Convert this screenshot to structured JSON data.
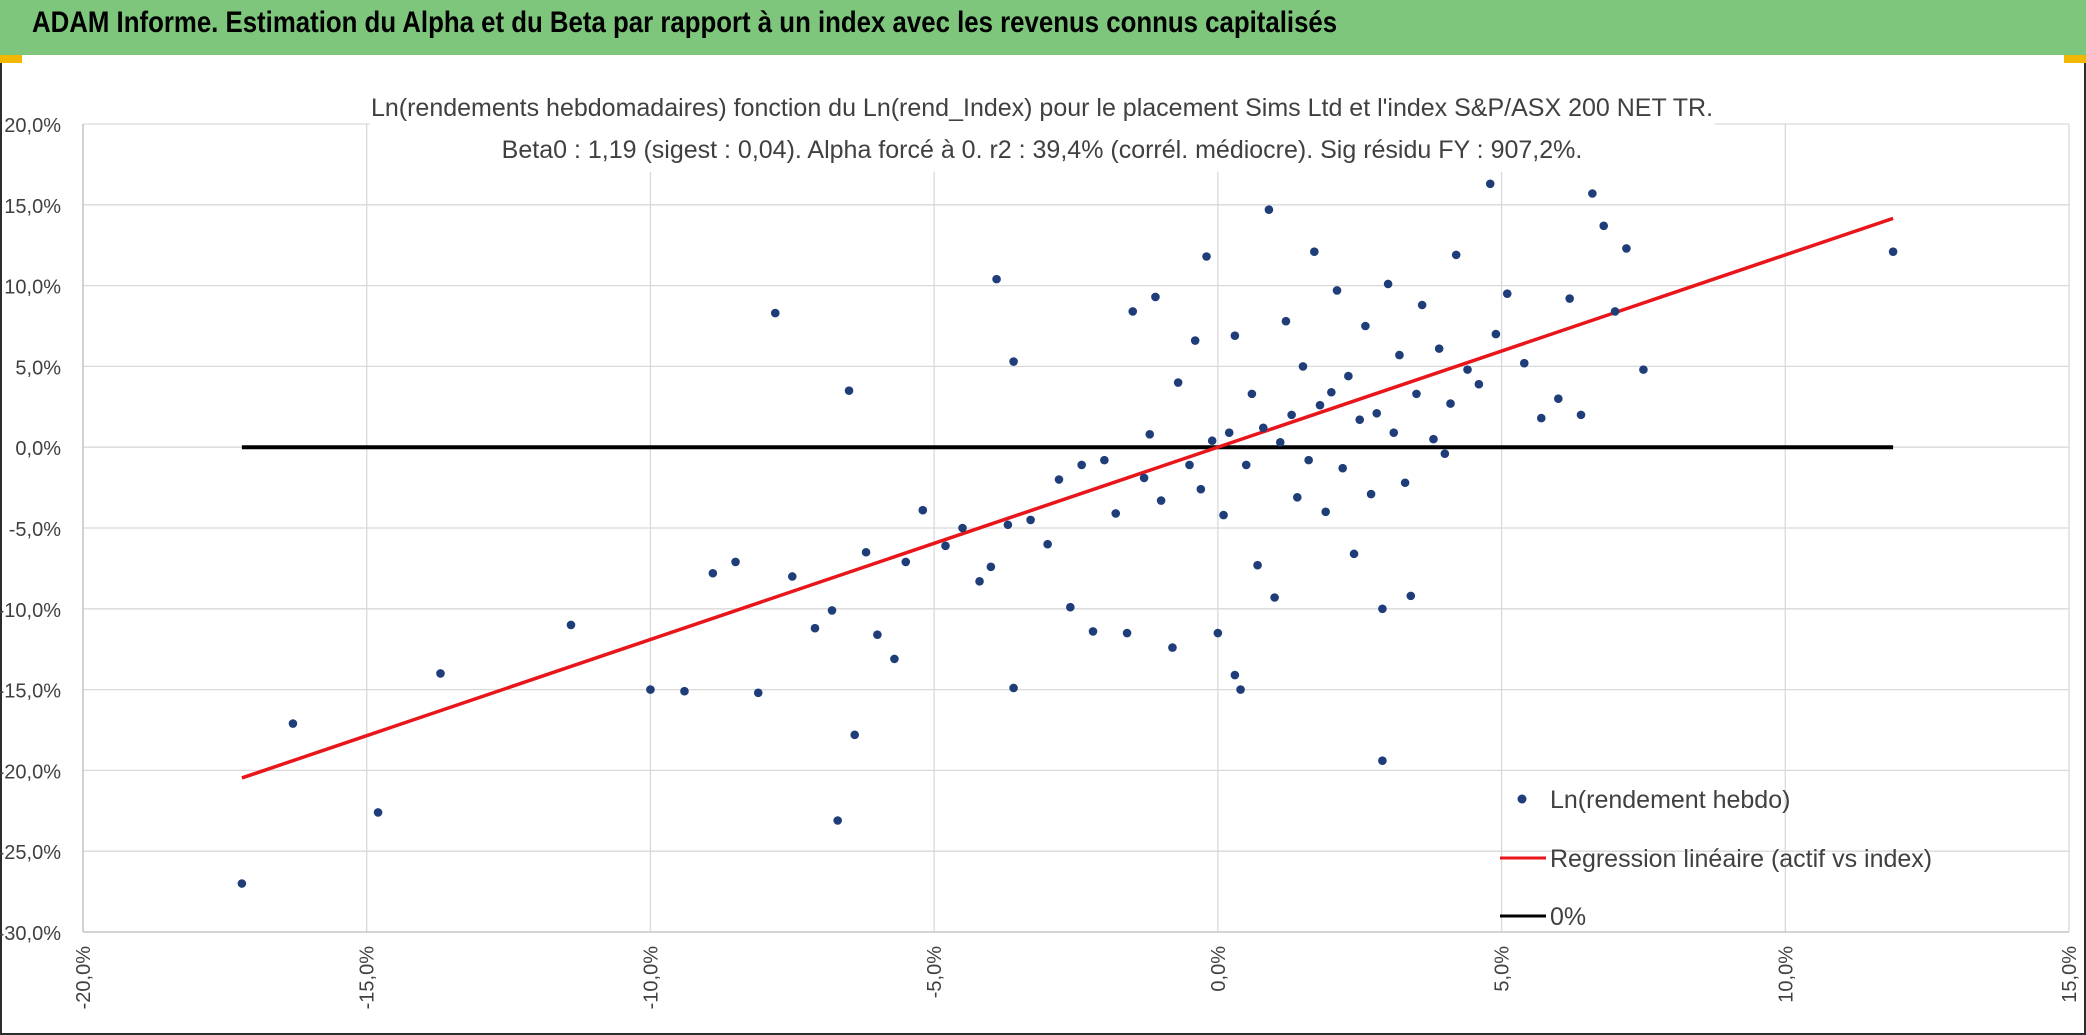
{
  "header": {
    "title": "ADAM Informe. Estimation du Alpha et du Beta par rapport à un index avec les revenus connus capitalisés"
  },
  "colors": {
    "header_bg": "#7dc67c",
    "scatter": "#1f3d78",
    "regression": "#e8161b",
    "zero_line": "#000000",
    "corner_accent": "#f2b800"
  },
  "chart_data": {
    "type": "scatter",
    "title": "Ln(rendements hebdomadaires) fonction du Ln(rend_Index) pour le placement Sims Ltd et l'index S&P/ASX 200 NET TR.",
    "subtitle": "Beta0 : 1,19 (sigest : 0,04). Alpha forcé à 0. r2 : 39,4% (corrél. médiocre). Sig résidu FY : 907,2%.",
    "xlabel": "",
    "ylabel": "",
    "xlim": [
      -20,
      15
    ],
    "ylim": [
      -30,
      20
    ],
    "x_ticks": [
      -20,
      -15,
      -10,
      -5,
      0,
      5,
      10,
      15
    ],
    "y_ticks": [
      20,
      15,
      10,
      5,
      0,
      -5,
      -10,
      -15,
      -20,
      -25,
      -30
    ],
    "x_tick_labels": [
      "-20,0%",
      "-15,0%",
      "-10,0%",
      "-5,0%",
      "0,0%",
      "5,0%",
      "10,0%",
      "15,0%"
    ],
    "y_tick_labels": [
      "20,0%",
      "15,0%",
      "10,0%",
      "5,0%",
      "0,0%",
      "-5,0%",
      "-10,0%",
      "-15,0%",
      "-20,0%",
      "-25,0%",
      "-30,0%"
    ],
    "grid": true,
    "legend_position": "bottom-right",
    "regression": {
      "name": "Regression linéaire (actif vs index)",
      "beta": 1.19,
      "alpha": 0,
      "x": [
        -17.2,
        11.9
      ]
    },
    "zero_line": {
      "name": "0%",
      "y": 0,
      "x": [
        -17.2,
        11.9
      ]
    },
    "series": [
      {
        "name": "Ln(rendement hebdo)",
        "points": [
          [
            -17.2,
            -27.0
          ],
          [
            -16.3,
            -17.1
          ],
          [
            -14.8,
            -22.6
          ],
          [
            -13.7,
            -14.0
          ],
          [
            -11.4,
            -11.0
          ],
          [
            -10.0,
            -15.0
          ],
          [
            -9.4,
            -15.1
          ],
          [
            -8.9,
            -7.8
          ],
          [
            -8.5,
            -7.1
          ],
          [
            -8.1,
            -15.2
          ],
          [
            -7.8,
            8.3
          ],
          [
            -7.5,
            -8.0
          ],
          [
            -7.1,
            -11.2
          ],
          [
            -6.8,
            -10.1
          ],
          [
            -6.7,
            -23.1
          ],
          [
            -6.5,
            3.5
          ],
          [
            -6.4,
            -17.8
          ],
          [
            -6.2,
            -6.5
          ],
          [
            -6.0,
            -11.6
          ],
          [
            -5.7,
            -13.1
          ],
          [
            -5.5,
            -7.1
          ],
          [
            -5.2,
            -3.9
          ],
          [
            -4.8,
            -6.1
          ],
          [
            -4.5,
            -5.0
          ],
          [
            -4.2,
            -8.3
          ],
          [
            -4.0,
            -7.4
          ],
          [
            -3.9,
            10.4
          ],
          [
            -3.7,
            -4.8
          ],
          [
            -3.6,
            5.3
          ],
          [
            -3.6,
            -14.9
          ],
          [
            -3.3,
            -4.5
          ],
          [
            -3.0,
            -6.0
          ],
          [
            -2.8,
            -2.0
          ],
          [
            -2.6,
            -9.9
          ],
          [
            -2.4,
            -1.1
          ],
          [
            -2.2,
            -11.4
          ],
          [
            -2.0,
            -0.8
          ],
          [
            -1.8,
            -4.1
          ],
          [
            -1.6,
            -11.5
          ],
          [
            -1.5,
            8.4
          ],
          [
            -1.3,
            -1.9
          ],
          [
            -1.2,
            0.8
          ],
          [
            -1.1,
            9.3
          ],
          [
            -1.0,
            -3.3
          ],
          [
            -0.8,
            -12.4
          ],
          [
            -0.7,
            4.0
          ],
          [
            -0.5,
            -1.1
          ],
          [
            -0.4,
            6.6
          ],
          [
            -0.3,
            -2.6
          ],
          [
            -0.2,
            11.8
          ],
          [
            -0.1,
            0.4
          ],
          [
            0.0,
            -11.5
          ],
          [
            0.1,
            -4.2
          ],
          [
            0.2,
            0.9
          ],
          [
            0.3,
            6.9
          ],
          [
            0.3,
            -14.1
          ],
          [
            0.4,
            -15.0
          ],
          [
            0.5,
            -1.1
          ],
          [
            0.6,
            3.3
          ],
          [
            0.7,
            -7.3
          ],
          [
            0.8,
            1.2
          ],
          [
            0.9,
            14.7
          ],
          [
            1.0,
            -9.3
          ],
          [
            1.1,
            0.3
          ],
          [
            1.2,
            7.8
          ],
          [
            1.3,
            2.0
          ],
          [
            1.4,
            -3.1
          ],
          [
            1.5,
            5.0
          ],
          [
            1.6,
            -0.8
          ],
          [
            1.7,
            12.1
          ],
          [
            1.8,
            2.6
          ],
          [
            1.9,
            -4.0
          ],
          [
            2.0,
            3.4
          ],
          [
            2.1,
            9.7
          ],
          [
            2.2,
            -1.3
          ],
          [
            2.3,
            4.4
          ],
          [
            2.4,
            -6.6
          ],
          [
            2.5,
            1.7
          ],
          [
            2.6,
            7.5
          ],
          [
            2.7,
            -2.9
          ],
          [
            2.8,
            2.1
          ],
          [
            2.9,
            -10.0
          ],
          [
            2.9,
            -19.4
          ],
          [
            3.0,
            10.1
          ],
          [
            3.1,
            0.9
          ],
          [
            3.2,
            5.7
          ],
          [
            3.3,
            -2.2
          ],
          [
            3.4,
            -9.2
          ],
          [
            3.5,
            3.3
          ],
          [
            3.6,
            8.8
          ],
          [
            3.8,
            0.5
          ],
          [
            3.9,
            6.1
          ],
          [
            4.0,
            -0.4
          ],
          [
            4.1,
            2.7
          ],
          [
            4.2,
            11.9
          ],
          [
            4.4,
            4.8
          ],
          [
            4.6,
            3.9
          ],
          [
            4.8,
            16.3
          ],
          [
            4.9,
            7.0
          ],
          [
            5.1,
            9.5
          ],
          [
            5.4,
            5.2
          ],
          [
            5.7,
            1.8
          ],
          [
            6.0,
            3.0
          ],
          [
            6.2,
            9.2
          ],
          [
            6.4,
            2.0
          ],
          [
            6.6,
            15.7
          ],
          [
            6.8,
            13.7
          ],
          [
            7.0,
            8.4
          ],
          [
            7.2,
            12.3
          ],
          [
            7.5,
            4.8
          ],
          [
            11.9,
            12.1
          ]
        ]
      }
    ]
  }
}
